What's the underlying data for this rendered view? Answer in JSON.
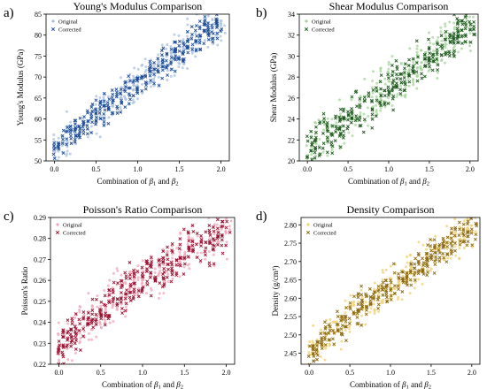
{
  "chart_data": [
    {
      "type": "scatter",
      "panel_label": "a)",
      "title": "Young's Modulus Comparison",
      "xlabel": "Combination of β1 and β2",
      "ylabel": "Young's Modulus (GPa)",
      "xlim": [
        -0.1,
        2.1
      ],
      "ylim": [
        50,
        85
      ],
      "xticks": [
        "0.0",
        "0.5",
        "1.0",
        "1.5",
        "2.0"
      ],
      "xtick_values": [
        0,
        0.5,
        1,
        1.5,
        2
      ],
      "yticks": [
        "50",
        "55",
        "60",
        "65",
        "70",
        "75",
        "80",
        "85"
      ],
      "ytick_values": [
        50,
        55,
        60,
        65,
        70,
        75,
        80,
        85
      ],
      "legend": "top-left",
      "grid": false,
      "trend": {
        "x": [
          0,
          0.5,
          1.0,
          1.5,
          2.0
        ],
        "y": [
          53,
          61,
          68.5,
          76,
          83
        ]
      },
      "series": [
        {
          "name": "Original",
          "marker": "o",
          "color": "#a8c0e0",
          "spread": 2.8
        },
        {
          "name": "Corrected",
          "marker": "x",
          "color": "#1f4e99",
          "spread": 2.2
        }
      ]
    },
    {
      "type": "scatter",
      "panel_label": "b)",
      "title": "Shear Modulus Comparison",
      "xlabel": "Combination of β1 and β2",
      "ylabel": "Shear Modulus (GPa)",
      "xlim": [
        -0.1,
        2.1
      ],
      "ylim": [
        20,
        34
      ],
      "xticks": [
        "0.0",
        "0.5",
        "1.0",
        "1.5",
        "2.0"
      ],
      "xtick_values": [
        0,
        0.5,
        1,
        1.5,
        2
      ],
      "yticks": [
        "20",
        "22",
        "24",
        "26",
        "28",
        "30",
        "32",
        "34"
      ],
      "ytick_values": [
        20,
        22,
        24,
        26,
        28,
        30,
        32,
        34
      ],
      "legend": "top-left",
      "grid": false,
      "trend": {
        "x": [
          0,
          0.5,
          1.0,
          1.5,
          2.0
        ],
        "y": [
          21,
          24,
          27,
          30,
          32.8
        ]
      },
      "series": [
        {
          "name": "Original",
          "marker": "o",
          "color": "#a6d49a",
          "spread": 1.3
        },
        {
          "name": "Corrected",
          "marker": "x",
          "color": "#1e5a1e",
          "spread": 1.1
        }
      ]
    },
    {
      "type": "scatter",
      "panel_label": "c)",
      "title": "Poisson's Ratio Comparison",
      "xlabel": "Combination of β1 and β2",
      "ylabel": "Poisson's Ratio",
      "xlim": [
        -0.1,
        2.1
      ],
      "ylim": [
        0.22,
        0.29
      ],
      "xticks": [
        "0.0",
        "0.5",
        "1.0",
        "1.5",
        "2.0"
      ],
      "xtick_values": [
        0,
        0.5,
        1,
        1.5,
        2
      ],
      "yticks": [
        "0.22",
        "0.23",
        "0.24",
        "0.25",
        "0.26",
        "0.27",
        "0.28",
        "0.29"
      ],
      "ytick_values": [
        0.22,
        0.23,
        0.24,
        0.25,
        0.26,
        0.27,
        0.28,
        0.29
      ],
      "legend": "top-left",
      "grid": false,
      "trend": {
        "x": [
          0,
          0.5,
          1.0,
          1.5,
          2.0
        ],
        "y": [
          0.229,
          0.245,
          0.26,
          0.272,
          0.284
        ]
      },
      "series": [
        {
          "name": "Original",
          "marker": "o",
          "color": "#f0a6b8",
          "spread": 0.0065
        },
        {
          "name": "Corrected",
          "marker": "x",
          "color": "#9b1030",
          "spread": 0.0055
        }
      ]
    },
    {
      "type": "scatter",
      "panel_label": "d)",
      "title": "Density Comparison",
      "xlabel": "Combination of β1 and β2",
      "ylabel": "Density (g/cm³)",
      "xlim": [
        -0.1,
        2.1
      ],
      "ylim": [
        2.42,
        2.82
      ],
      "xticks": [
        "0.0",
        "0.5",
        "1.0",
        "1.5",
        "2.0"
      ],
      "xtick_values": [
        0,
        0.5,
        1,
        1.5,
        2
      ],
      "yticks": [
        "2.45",
        "2.50",
        "2.55",
        "2.60",
        "2.65",
        "2.70",
        "2.75",
        "2.80"
      ],
      "ytick_values": [
        2.45,
        2.5,
        2.55,
        2.6,
        2.65,
        2.7,
        2.75,
        2.8
      ],
      "legend": "top-left",
      "grid": false,
      "trend": {
        "x": [
          0,
          0.5,
          1.0,
          1.5,
          2.0
        ],
        "y": [
          2.45,
          2.55,
          2.63,
          2.71,
          2.79
        ]
      },
      "series": [
        {
          "name": "Original",
          "marker": "o",
          "color": "#f0d070",
          "spread": 0.03
        },
        {
          "name": "Corrected",
          "marker": "x",
          "color": "#8c6a10",
          "spread": 0.025
        }
      ]
    }
  ]
}
